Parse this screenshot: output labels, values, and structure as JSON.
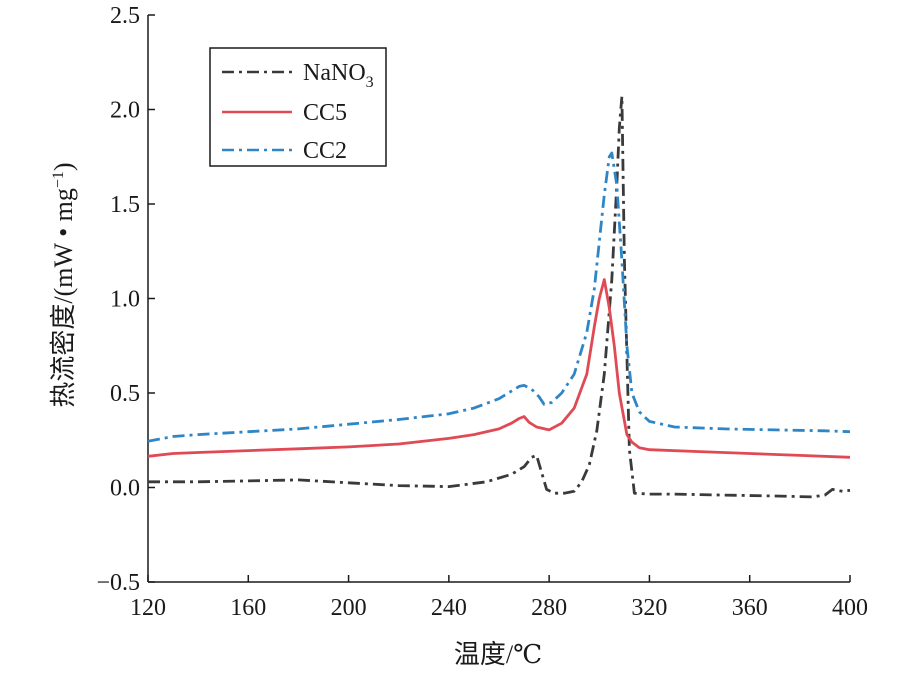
{
  "chart_data": {
    "type": "line",
    "xlabel": "温度/℃",
    "ylabel": "热流密度/(mW • mg",
    "ylabel_sup": "−1",
    "ylabel_close": ")",
    "xlim": [
      120,
      400
    ],
    "ylim": [
      -0.5,
      2.5
    ],
    "xticks": [
      120,
      160,
      200,
      240,
      280,
      320,
      360,
      400
    ],
    "xtick_labels": [
      "120",
      "160",
      "200",
      "240",
      "280",
      "320",
      "360",
      "400"
    ],
    "yticks": [
      -0.5,
      0.0,
      0.5,
      1.0,
      1.5,
      2.0,
      2.5
    ],
    "ytick_labels": [
      "−0.5",
      "0.0",
      "0.5",
      "1.0",
      "1.5",
      "2.0",
      "2.5"
    ],
    "grid": false,
    "legend_position": "top-left",
    "series": [
      {
        "name": "NaNO",
        "name_sub": "3",
        "color": "#3a3a3a",
        "style": "dashdot",
        "x": [
          120,
          140,
          160,
          180,
          200,
          220,
          240,
          255,
          265,
          270,
          273,
          275,
          277,
          279,
          282,
          286,
          290,
          293,
          296,
          299,
          302,
          305,
          307,
          308,
          309,
          310,
          312,
          314,
          320,
          330,
          350,
          370,
          385,
          390,
          393,
          397,
          400
        ],
        "y": [
          0.03,
          0.03,
          0.035,
          0.04,
          0.025,
          0.01,
          0.005,
          0.03,
          0.07,
          0.11,
          0.16,
          0.17,
          0.08,
          -0.01,
          -0.03,
          -0.03,
          -0.02,
          0.03,
          0.12,
          0.3,
          0.6,
          1.1,
          1.6,
          1.9,
          2.07,
          1.2,
          0.2,
          -0.03,
          -0.035,
          -0.035,
          -0.04,
          -0.045,
          -0.05,
          -0.04,
          -0.01,
          -0.02,
          -0.015
        ]
      },
      {
        "name": "CC5",
        "color": "#e04a55",
        "style": "solid",
        "x": [
          120,
          130,
          140,
          160,
          180,
          200,
          220,
          240,
          250,
          260,
          265,
          268,
          270,
          272,
          275,
          280,
          285,
          290,
          295,
          298,
          300,
          302,
          304,
          306,
          308,
          311,
          313,
          316,
          320,
          340,
          360,
          380,
          400
        ],
        "y": [
          0.165,
          0.18,
          0.185,
          0.195,
          0.205,
          0.215,
          0.23,
          0.26,
          0.28,
          0.31,
          0.34,
          0.365,
          0.375,
          0.345,
          0.32,
          0.305,
          0.34,
          0.42,
          0.6,
          0.85,
          1.0,
          1.1,
          0.95,
          0.75,
          0.5,
          0.28,
          0.24,
          0.21,
          0.2,
          0.19,
          0.18,
          0.17,
          0.16
        ]
      },
      {
        "name": "CC2",
        "color": "#2f86c6",
        "style": "dashdot",
        "x": [
          120,
          130,
          140,
          160,
          180,
          200,
          220,
          240,
          250,
          260,
          265,
          268,
          270,
          273,
          276,
          278,
          281,
          285,
          290,
          295,
          298,
          300,
          302,
          304,
          305,
          307,
          309,
          311,
          313,
          316,
          320,
          330,
          350,
          370,
          390,
          400
        ],
        "y": [
          0.245,
          0.27,
          0.28,
          0.295,
          0.31,
          0.335,
          0.36,
          0.39,
          0.42,
          0.47,
          0.51,
          0.535,
          0.54,
          0.52,
          0.48,
          0.44,
          0.45,
          0.5,
          0.6,
          0.82,
          1.05,
          1.3,
          1.55,
          1.75,
          1.77,
          1.6,
          1.2,
          0.75,
          0.5,
          0.4,
          0.35,
          0.32,
          0.31,
          0.305,
          0.3,
          0.295
        ]
      }
    ]
  }
}
